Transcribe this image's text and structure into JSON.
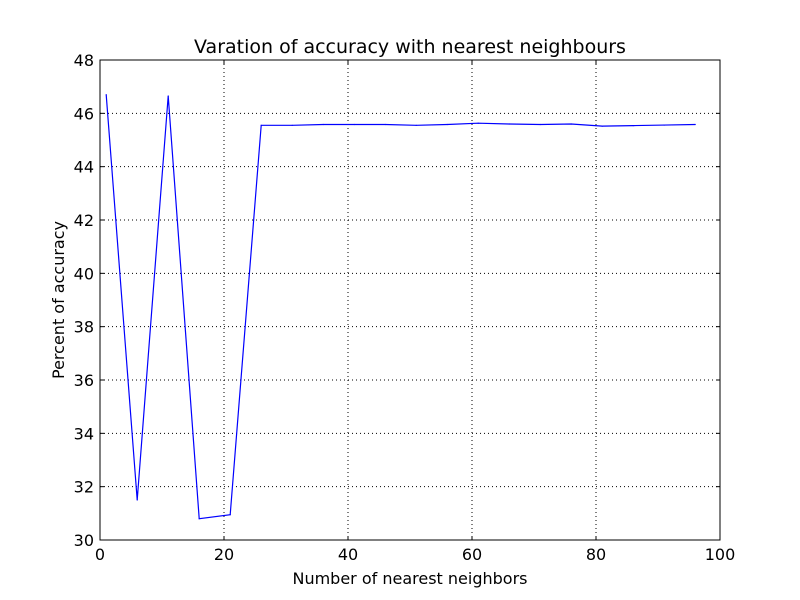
{
  "chart_data": {
    "type": "line",
    "title": "Varation of accuracy with nearest neighbours",
    "xlabel": "Number of nearest neighbors",
    "ylabel": "Percent of accuracy",
    "xlim": [
      0,
      100
    ],
    "ylim": [
      30,
      48
    ],
    "xticks": [
      0,
      20,
      40,
      60,
      80,
      100
    ],
    "yticks": [
      30,
      32,
      34,
      36,
      38,
      40,
      42,
      44,
      46,
      48
    ],
    "x_tick_labels": [
      "0",
      "20",
      "40",
      "60",
      "80",
      "100"
    ],
    "y_tick_labels": [
      "30",
      "32",
      "34",
      "36",
      "38",
      "40",
      "42",
      "44",
      "46",
      "48"
    ],
    "grid": true,
    "series": [
      {
        "color": "#0000ff",
        "x": [
          1,
          6,
          11,
          16,
          21,
          26,
          31,
          36,
          41,
          46,
          51,
          56,
          61,
          66,
          71,
          76,
          81,
          86,
          91,
          96
        ],
        "y": [
          46.7,
          31.5,
          46.65,
          30.8,
          30.95,
          45.55,
          45.55,
          45.58,
          45.58,
          45.58,
          45.55,
          45.58,
          45.63,
          45.6,
          45.58,
          45.6,
          45.52,
          45.54,
          45.56,
          45.58
        ]
      }
    ]
  }
}
